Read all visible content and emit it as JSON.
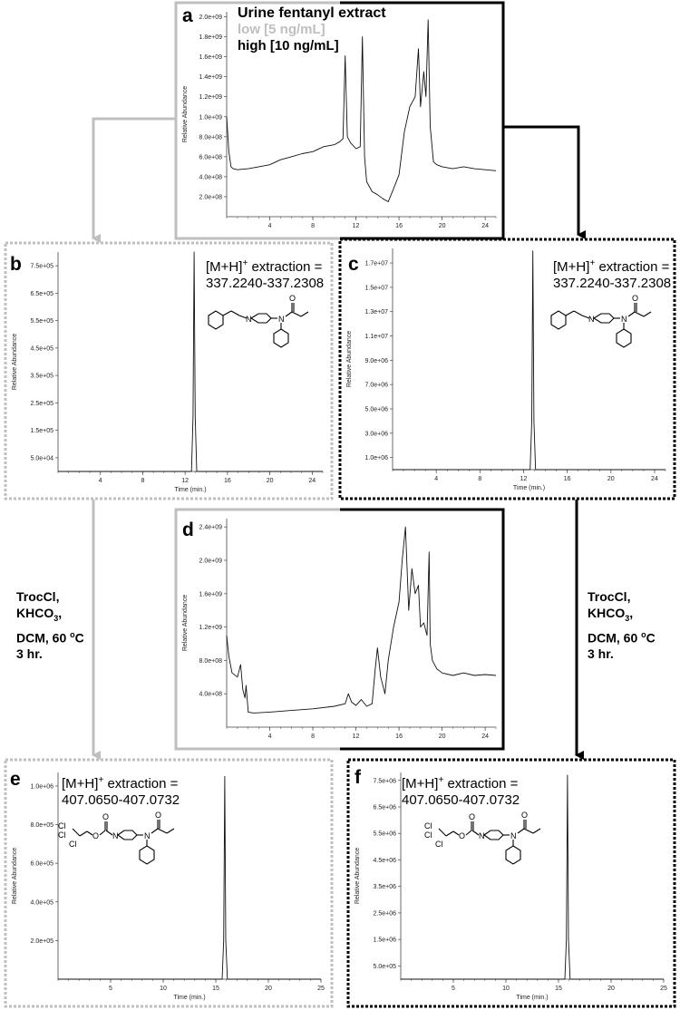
{
  "colors": {
    "low": "#bfbfbf",
    "high": "#000000",
    "trace": "#111111"
  },
  "legend": {
    "title": "Urine fentanyl extract",
    "low": "low [5 ng/mL]",
    "high": "high [10 ng/mL]"
  },
  "conditions": {
    "left": {
      "l1": "TrocCl,",
      "l2a": "KHCO",
      "l2sub": "3",
      "l2b": ",",
      "l3a": "DCM, 60 ",
      "l3sup": "o",
      "l3b": "C",
      "l4": "3 hr."
    },
    "right": {
      "l1": "TrocCl,",
      "l2a": "KHCO",
      "l2sub": "3",
      "l2b": ",",
      "l3a": "DCM, 60 ",
      "l3sup": "o",
      "l3b": "C",
      "l4": "3 hr."
    }
  },
  "chart_data": [
    {
      "id": "a",
      "letter": "a",
      "type": "line",
      "xlabel": "",
      "ylabel": "Relative Abundance",
      "xlim": [
        0,
        25
      ],
      "ylim": [
        0,
        2050000000.0
      ],
      "xticks": [
        4,
        8,
        12,
        16,
        20,
        24
      ],
      "yticks": [
        200000000.0,
        400000000.0,
        600000000.0,
        800000000.0,
        1000000000.0,
        1200000000.0,
        1400000000.0,
        1600000000.0,
        1800000000.0,
        2000000000.0
      ],
      "ytick_labels": [
        "2.0e+08",
        "4.0e+08",
        "6.0e+08",
        "8.0e+08",
        "1.0e+09",
        "1.2e+09",
        "1.4e+09",
        "1.6e+09",
        "1.8e+09",
        "2.0e+09"
      ],
      "x": [
        0,
        0.2,
        0.4,
        0.6,
        1,
        2,
        3,
        4,
        5,
        6,
        7,
        8,
        9,
        10,
        10.5,
        10.8,
        11,
        11.2,
        11.5,
        12,
        12.4,
        12.6,
        12.8,
        13,
        13.5,
        14,
        14.5,
        15,
        15.5,
        16,
        16.5,
        17,
        17.5,
        17.8,
        18,
        18.3,
        18.5,
        18.7,
        18.9,
        19.2,
        19.5,
        20,
        21,
        22,
        23,
        24,
        25
      ],
      "y": [
        1000000000.0,
        650000000.0,
        500000000.0,
        480000000.0,
        470000000.0,
        480000000.0,
        500000000.0,
        520000000.0,
        570000000.0,
        600000000.0,
        630000000.0,
        650000000.0,
        700000000.0,
        720000000.0,
        750000000.0,
        780000000.0,
        1610000000.0,
        800000000.0,
        740000000.0,
        680000000.0,
        700000000.0,
        1800000000.0,
        600000000.0,
        350000000.0,
        250000000.0,
        220000000.0,
        180000000.0,
        150000000.0,
        280000000.0,
        420000000.0,
        850000000.0,
        1100000000.0,
        1200000000.0,
        1680000000.0,
        1100000000.0,
        1450000000.0,
        1200000000.0,
        1970000000.0,
        900000000.0,
        550000000.0,
        520000000.0,
        500000000.0,
        480000000.0,
        500000000.0,
        480000000.0,
        470000000.0,
        460000000.0
      ]
    },
    {
      "id": "b",
      "letter": "b",
      "type": "line",
      "xlabel": "Time (min.)",
      "ylabel": "Relative Abundance",
      "extraction_label": "[M+H]",
      "extraction_sup": "+",
      "extraction_rest": " extraction =",
      "extraction_range": "337.2240-337.2308",
      "xlim": [
        0,
        25
      ],
      "ylim": [
        0,
        800000.0
      ],
      "xticks": [
        4,
        8,
        12,
        16,
        20,
        24
      ],
      "yticks": [
        50000.0,
        150000.0,
        250000.0,
        350000.0,
        450000.0,
        550000.0,
        650000.0,
        750000.0
      ],
      "ytick_labels": [
        "5.0e+04",
        "1.5e+05",
        "2.5e+05",
        "3.5e+05",
        "4.5e+05",
        "5.5e+05",
        "6.5e+05",
        "7.5e+05"
      ],
      "x": [
        0,
        12.6,
        12.75,
        12.85,
        12.95,
        13.1,
        25
      ],
      "y": [
        0,
        0,
        200000.0,
        800000.0,
        200000.0,
        0,
        0
      ]
    },
    {
      "id": "c",
      "letter": "c",
      "type": "line",
      "xlabel": "Time (min.)",
      "ylabel": "Relative Abundance",
      "extraction_label": "[M+H]",
      "extraction_sup": "+",
      "extraction_rest": " extraction =",
      "extraction_range": "337.2240-337.2308",
      "xlim": [
        0,
        25
      ],
      "ylim": [
        0,
        18200000.0
      ],
      "xticks": [
        4,
        8,
        12,
        16,
        20,
        24
      ],
      "yticks": [
        1000000.0,
        3000000.0,
        5000000.0,
        7000000.0,
        9000000.0,
        11000000.0,
        13000000.0,
        15000000.0,
        17000000.0
      ],
      "ytick_labels": [
        "1.0e+06",
        "3.0e+06",
        "5.0e+06",
        "7.0e+06",
        "9.0e+06",
        "1.1e+07",
        "1.3e+07",
        "1.5e+07",
        "1.7e+07"
      ],
      "x": [
        0,
        12.6,
        12.75,
        12.85,
        12.95,
        13.1,
        25
      ],
      "y": [
        0,
        0,
        4000000.0,
        18000000.0,
        4000000.0,
        0,
        0
      ]
    },
    {
      "id": "d",
      "letter": "d",
      "type": "line",
      "xlabel": "",
      "ylabel": "Relative Abundance",
      "xlim": [
        0,
        25
      ],
      "ylim": [
        0,
        2500000000.0
      ],
      "xticks": [
        4,
        8,
        12,
        16,
        20,
        24
      ],
      "yticks": [
        400000000.0,
        800000000.0,
        1200000000.0,
        1600000000.0,
        2000000000.0,
        2400000000.0
      ],
      "ytick_labels": [
        "4.0e+08",
        "8.0e+08",
        "1.2e+09",
        "1.6e+09",
        "2.0e+09",
        "2.4e+09"
      ],
      "x": [
        0,
        0.2,
        0.5,
        1,
        1.3,
        1.5,
        1.7,
        1.8,
        2,
        2.5,
        4,
        6,
        8,
        10,
        11,
        11.3,
        11.6,
        12,
        12.5,
        13,
        13.5,
        13.8,
        14,
        14.3,
        14.7,
        15,
        15.5,
        16,
        16.3,
        16.6,
        16.9,
        17.2,
        17.5,
        17.8,
        18,
        18.3,
        18.6,
        18.8,
        18.9,
        19.1,
        19.5,
        20,
        21,
        22,
        23,
        24,
        25
      ],
      "y": [
        1100000000.0,
        850000000.0,
        650000000.0,
        600000000.0,
        750000000.0,
        450000000.0,
        350000000.0,
        500000000.0,
        180000000.0,
        170000000.0,
        180000000.0,
        200000000.0,
        220000000.0,
        250000000.0,
        280000000.0,
        400000000.0,
        300000000.0,
        260000000.0,
        330000000.0,
        250000000.0,
        280000000.0,
        700000000.0,
        950000000.0,
        600000000.0,
        400000000.0,
        800000000.0,
        1200000000.0,
        1500000000.0,
        2000000000.0,
        2400000000.0,
        1400000000.0,
        1900000000.0,
        1600000000.0,
        1700000000.0,
        1200000000.0,
        1250000000.0,
        1100000000.0,
        2100000000.0,
        1000000000.0,
        800000000.0,
        700000000.0,
        650000000.0,
        620000000.0,
        650000000.0,
        620000000.0,
        630000000.0,
        620000000.0
      ]
    },
    {
      "id": "e",
      "letter": "e",
      "type": "line",
      "xlabel": "Time (min.)",
      "ylabel": "Relative Abundance",
      "extraction_label": "[M+H]",
      "extraction_sup": "+",
      "extraction_rest": " extraction =",
      "extraction_range": "407.0650-407.0732",
      "xlim": [
        0,
        25
      ],
      "ylim": [
        0,
        1070000.0
      ],
      "xticks": [
        5,
        10,
        15,
        20,
        25
      ],
      "yticks": [
        200000.0,
        400000.0,
        600000.0,
        800000.0,
        1000000.0
      ],
      "ytick_labels": [
        "2.0e+05",
        "4.0e+05",
        "6.0e+05",
        "8.0e+05",
        "1.0e+06"
      ],
      "x": [
        0,
        15.6,
        15.75,
        15.85,
        15.95,
        16.1,
        25
      ],
      "y": [
        0,
        0,
        200000.0,
        1050000.0,
        200000.0,
        0,
        0
      ]
    },
    {
      "id": "f",
      "letter": "f",
      "type": "line",
      "xlabel": "Time (min.)",
      "ylabel": "Relative Abundance",
      "extraction_label": "[M+H]",
      "extraction_sup": "+",
      "extraction_rest": " extraction =",
      "extraction_range": "407.0650-407.0732",
      "xlim": [
        0,
        25
      ],
      "ylim": [
        0,
        7800000.0
      ],
      "xticks": [
        5,
        10,
        15,
        20,
        25
      ],
      "yticks": [
        500000.0,
        1500000.0,
        2500000.0,
        3500000.0,
        4500000.0,
        5500000.0,
        6500000.0,
        7500000.0
      ],
      "ytick_labels": [
        "5.0e+05",
        "1.5e+06",
        "2.5e+06",
        "3.5e+06",
        "4.5e+06",
        "5.5e+06",
        "6.5e+06",
        "7.5e+06"
      ],
      "x": [
        0,
        15.6,
        15.75,
        15.85,
        15.95,
        16.1,
        25
      ],
      "y": [
        0,
        0,
        1500000.0,
        7700000.0,
        1500000.0,
        0,
        0
      ]
    }
  ]
}
